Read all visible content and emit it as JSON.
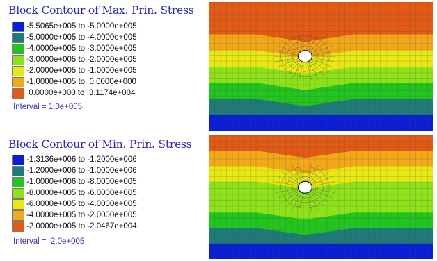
{
  "panels": [
    {
      "title": "Block Contour of Max. Prin. Stress",
      "legend": [
        {
          "label": "-5.5065e+005 to -5.0000e+005",
          "color": "#0a1ed6"
        },
        {
          "label": "-5.0000e+005 to -4.0000e+005",
          "color": "#1e7b78"
        },
        {
          "label": "-4.0000e+005 to -3.0000e+005",
          "color": "#22c41e"
        },
        {
          "label": "-3.0000e+005 to -2.0000e+005",
          "color": "#8ee21a"
        },
        {
          "label": "-2.0000e+005 to -1.0000e+005",
          "color": "#e8e812"
        },
        {
          "label": "-1.0000e+005 to  0.0000e+000",
          "color": "#f2a818"
        },
        {
          "label": " 0.0000e+000 to  3.1174e+004",
          "color": "#e25a14"
        }
      ],
      "interval": "Interval = 1.0e+005",
      "bands": [
        6,
        6,
        5,
        4,
        3,
        2,
        1,
        0
      ]
    },
    {
      "title": "Block Contour of Min. Prin. Stress",
      "legend": [
        {
          "label": "-1.3136e+006 to -1.2000e+006",
          "color": "#0a1ed6"
        },
        {
          "label": "-1.2000e+006 to -1.0000e+006",
          "color": "#1e7b78"
        },
        {
          "label": "-1.0000e+006 to -8.0000e+005",
          "color": "#22c41e"
        },
        {
          "label": "-8.0000e+005 to -6.0000e+005",
          "color": "#8ee21a"
        },
        {
          "label": "-6.0000e+005 to -4.0000e+005",
          "color": "#e8e812"
        },
        {
          "label": "-4.0000e+005 to -2.0000e+005",
          "color": "#f2a818"
        },
        {
          "label": "-2.0000e+005 to -2.0467e+004",
          "color": "#e25a14"
        }
      ],
      "interval": "Interval =  2.0e+005",
      "bands": [
        6,
        5,
        4,
        3,
        3,
        2,
        1,
        0
      ]
    }
  ]
}
